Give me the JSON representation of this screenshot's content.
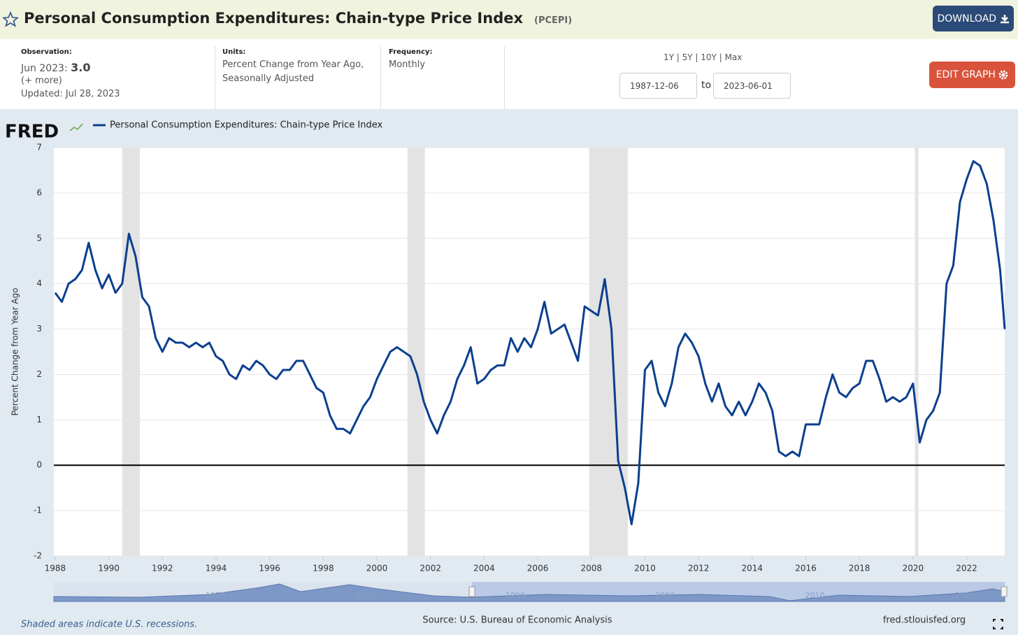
{
  "header": {
    "title": "Personal Consumption Expenditures: Chain-type Price Index",
    "series_id": "(PCEPI)",
    "download": "DOWNLOAD"
  },
  "info": {
    "observation_label": "Observation:",
    "observation_date": "Jun 2023:",
    "observation_value": "3.0",
    "more": "(+ more)",
    "updated": "Updated: Jul 28, 2023",
    "units_label": "Units:",
    "units_line1": "Percent Change from Year Ago,",
    "units_line2": "Seasonally Adjusted",
    "frequency_label": "Frequency:",
    "frequency": "Monthly",
    "ranges": [
      "1Y",
      "5Y",
      "10Y",
      "Max"
    ],
    "start_date": "1987-12-06",
    "to": "to",
    "end_date": "2023-06-01",
    "edit_graph": "EDIT GRAPH"
  },
  "logo": "FRED",
  "navigator": {
    "labels": [
      "1970",
      "1980",
      "1990",
      "2000",
      "2010",
      "2020"
    ]
  },
  "footer": {
    "note": "Shaded areas indicate U.S. recessions.",
    "source": "Source: U.S. Bureau of Economic Analysis",
    "site": "fred.stlouisfed.org"
  },
  "chart_data": {
    "type": "line",
    "ylabel": "Percent Change from Year Ago",
    "xlim": [
      1987.95,
      2023.42
    ],
    "xticks": [
      1988,
      1990,
      1992,
      1994,
      1996,
      1998,
      2000,
      2002,
      2004,
      2006,
      2008,
      2010,
      2012,
      2014,
      2016,
      2018,
      2020,
      2022
    ],
    "ylim": [
      -2,
      7
    ],
    "yticks": [
      -2,
      -1,
      0,
      1,
      2,
      3,
      4,
      5,
      6,
      7
    ],
    "grid": true,
    "recessions": [
      [
        1990.5,
        1991.16
      ],
      [
        2001.14,
        2001.79
      ],
      [
        2007.92,
        2009.36
      ],
      [
        2020.07,
        2020.2
      ]
    ],
    "x": [
      1988,
      1988.25,
      1988.5,
      1988.75,
      1989,
      1989.25,
      1989.5,
      1989.75,
      1990,
      1990.25,
      1990.5,
      1990.75,
      1991,
      1991.25,
      1991.5,
      1991.75,
      1992,
      1992.25,
      1992.5,
      1992.75,
      1993,
      1993.25,
      1993.5,
      1993.75,
      1994,
      1994.25,
      1994.5,
      1994.75,
      1995,
      1995.25,
      1995.5,
      1995.75,
      1996,
      1996.25,
      1996.5,
      1996.75,
      1997,
      1997.25,
      1997.5,
      1997.75,
      1998,
      1998.25,
      1998.5,
      1998.75,
      1999,
      1999.25,
      1999.5,
      1999.75,
      2000,
      2000.25,
      2000.5,
      2000.75,
      2001,
      2001.25,
      2001.5,
      2001.75,
      2002,
      2002.25,
      2002.5,
      2002.75,
      2003,
      2003.25,
      2003.5,
      2003.75,
      2004,
      2004.25,
      2004.5,
      2004.75,
      2005,
      2005.25,
      2005.5,
      2005.75,
      2006,
      2006.25,
      2006.5,
      2006.75,
      2007,
      2007.25,
      2007.5,
      2007.75,
      2008,
      2008.25,
      2008.5,
      2008.75,
      2009,
      2009.25,
      2009.5,
      2009.75,
      2010,
      2010.25,
      2010.5,
      2010.75,
      2011,
      2011.25,
      2011.5,
      2011.75,
      2012,
      2012.25,
      2012.5,
      2012.75,
      2013,
      2013.25,
      2013.5,
      2013.75,
      2014,
      2014.25,
      2014.5,
      2014.75,
      2015,
      2015.25,
      2015.5,
      2015.75,
      2016,
      2016.25,
      2016.5,
      2016.75,
      2017,
      2017.25,
      2017.5,
      2017.75,
      2018,
      2018.25,
      2018.5,
      2018.75,
      2019,
      2019.25,
      2019.5,
      2019.75,
      2020,
      2020.25,
      2020.5,
      2020.75,
      2021,
      2021.25,
      2021.5,
      2021.75,
      2022,
      2022.25,
      2022.5,
      2022.75,
      2023,
      2023.25,
      2023.42
    ],
    "series": [
      {
        "name": "Personal Consumption Expenditures: Chain-type Price Index",
        "color": "#0b3f8f",
        "values": [
          3.8,
          3.6,
          4.0,
          4.1,
          4.3,
          4.9,
          4.3,
          3.9,
          4.2,
          3.8,
          4.0,
          5.1,
          4.6,
          3.7,
          3.5,
          2.8,
          2.5,
          2.8,
          2.7,
          2.7,
          2.6,
          2.7,
          2.6,
          2.7,
          2.4,
          2.3,
          2.0,
          1.9,
          2.2,
          2.1,
          2.3,
          2.2,
          2.0,
          1.9,
          2.1,
          2.1,
          2.3,
          2.3,
          2.0,
          1.7,
          1.6,
          1.1,
          0.8,
          0.8,
          0.7,
          1.0,
          1.3,
          1.5,
          1.9,
          2.2,
          2.5,
          2.6,
          2.5,
          2.4,
          2.0,
          1.4,
          1.0,
          0.7,
          1.1,
          1.4,
          1.9,
          2.2,
          2.6,
          1.8,
          1.9,
          2.1,
          2.2,
          2.2,
          2.8,
          2.5,
          2.8,
          2.6,
          3.0,
          3.6,
          2.9,
          3.0,
          3.1,
          2.7,
          2.3,
          3.5,
          3.4,
          3.3,
          4.1,
          3.0,
          0.1,
          -0.5,
          -1.3,
          -0.4,
          2.1,
          2.3,
          1.6,
          1.3,
          1.8,
          2.6,
          2.9,
          2.7,
          2.4,
          1.8,
          1.4,
          1.8,
          1.3,
          1.1,
          1.4,
          1.1,
          1.4,
          1.8,
          1.6,
          1.2,
          0.3,
          0.2,
          0.3,
          0.2,
          0.9,
          0.9,
          0.9,
          1.5,
          2.0,
          1.6,
          1.5,
          1.7,
          1.8,
          2.3,
          2.3,
          1.9,
          1.4,
          1.5,
          1.4,
          1.5,
          1.8,
          0.5,
          1.0,
          1.2,
          1.6,
          4.0,
          4.4,
          5.8,
          6.3,
          6.7,
          6.6,
          6.2,
          5.4,
          4.3,
          3.0
        ]
      }
    ]
  }
}
